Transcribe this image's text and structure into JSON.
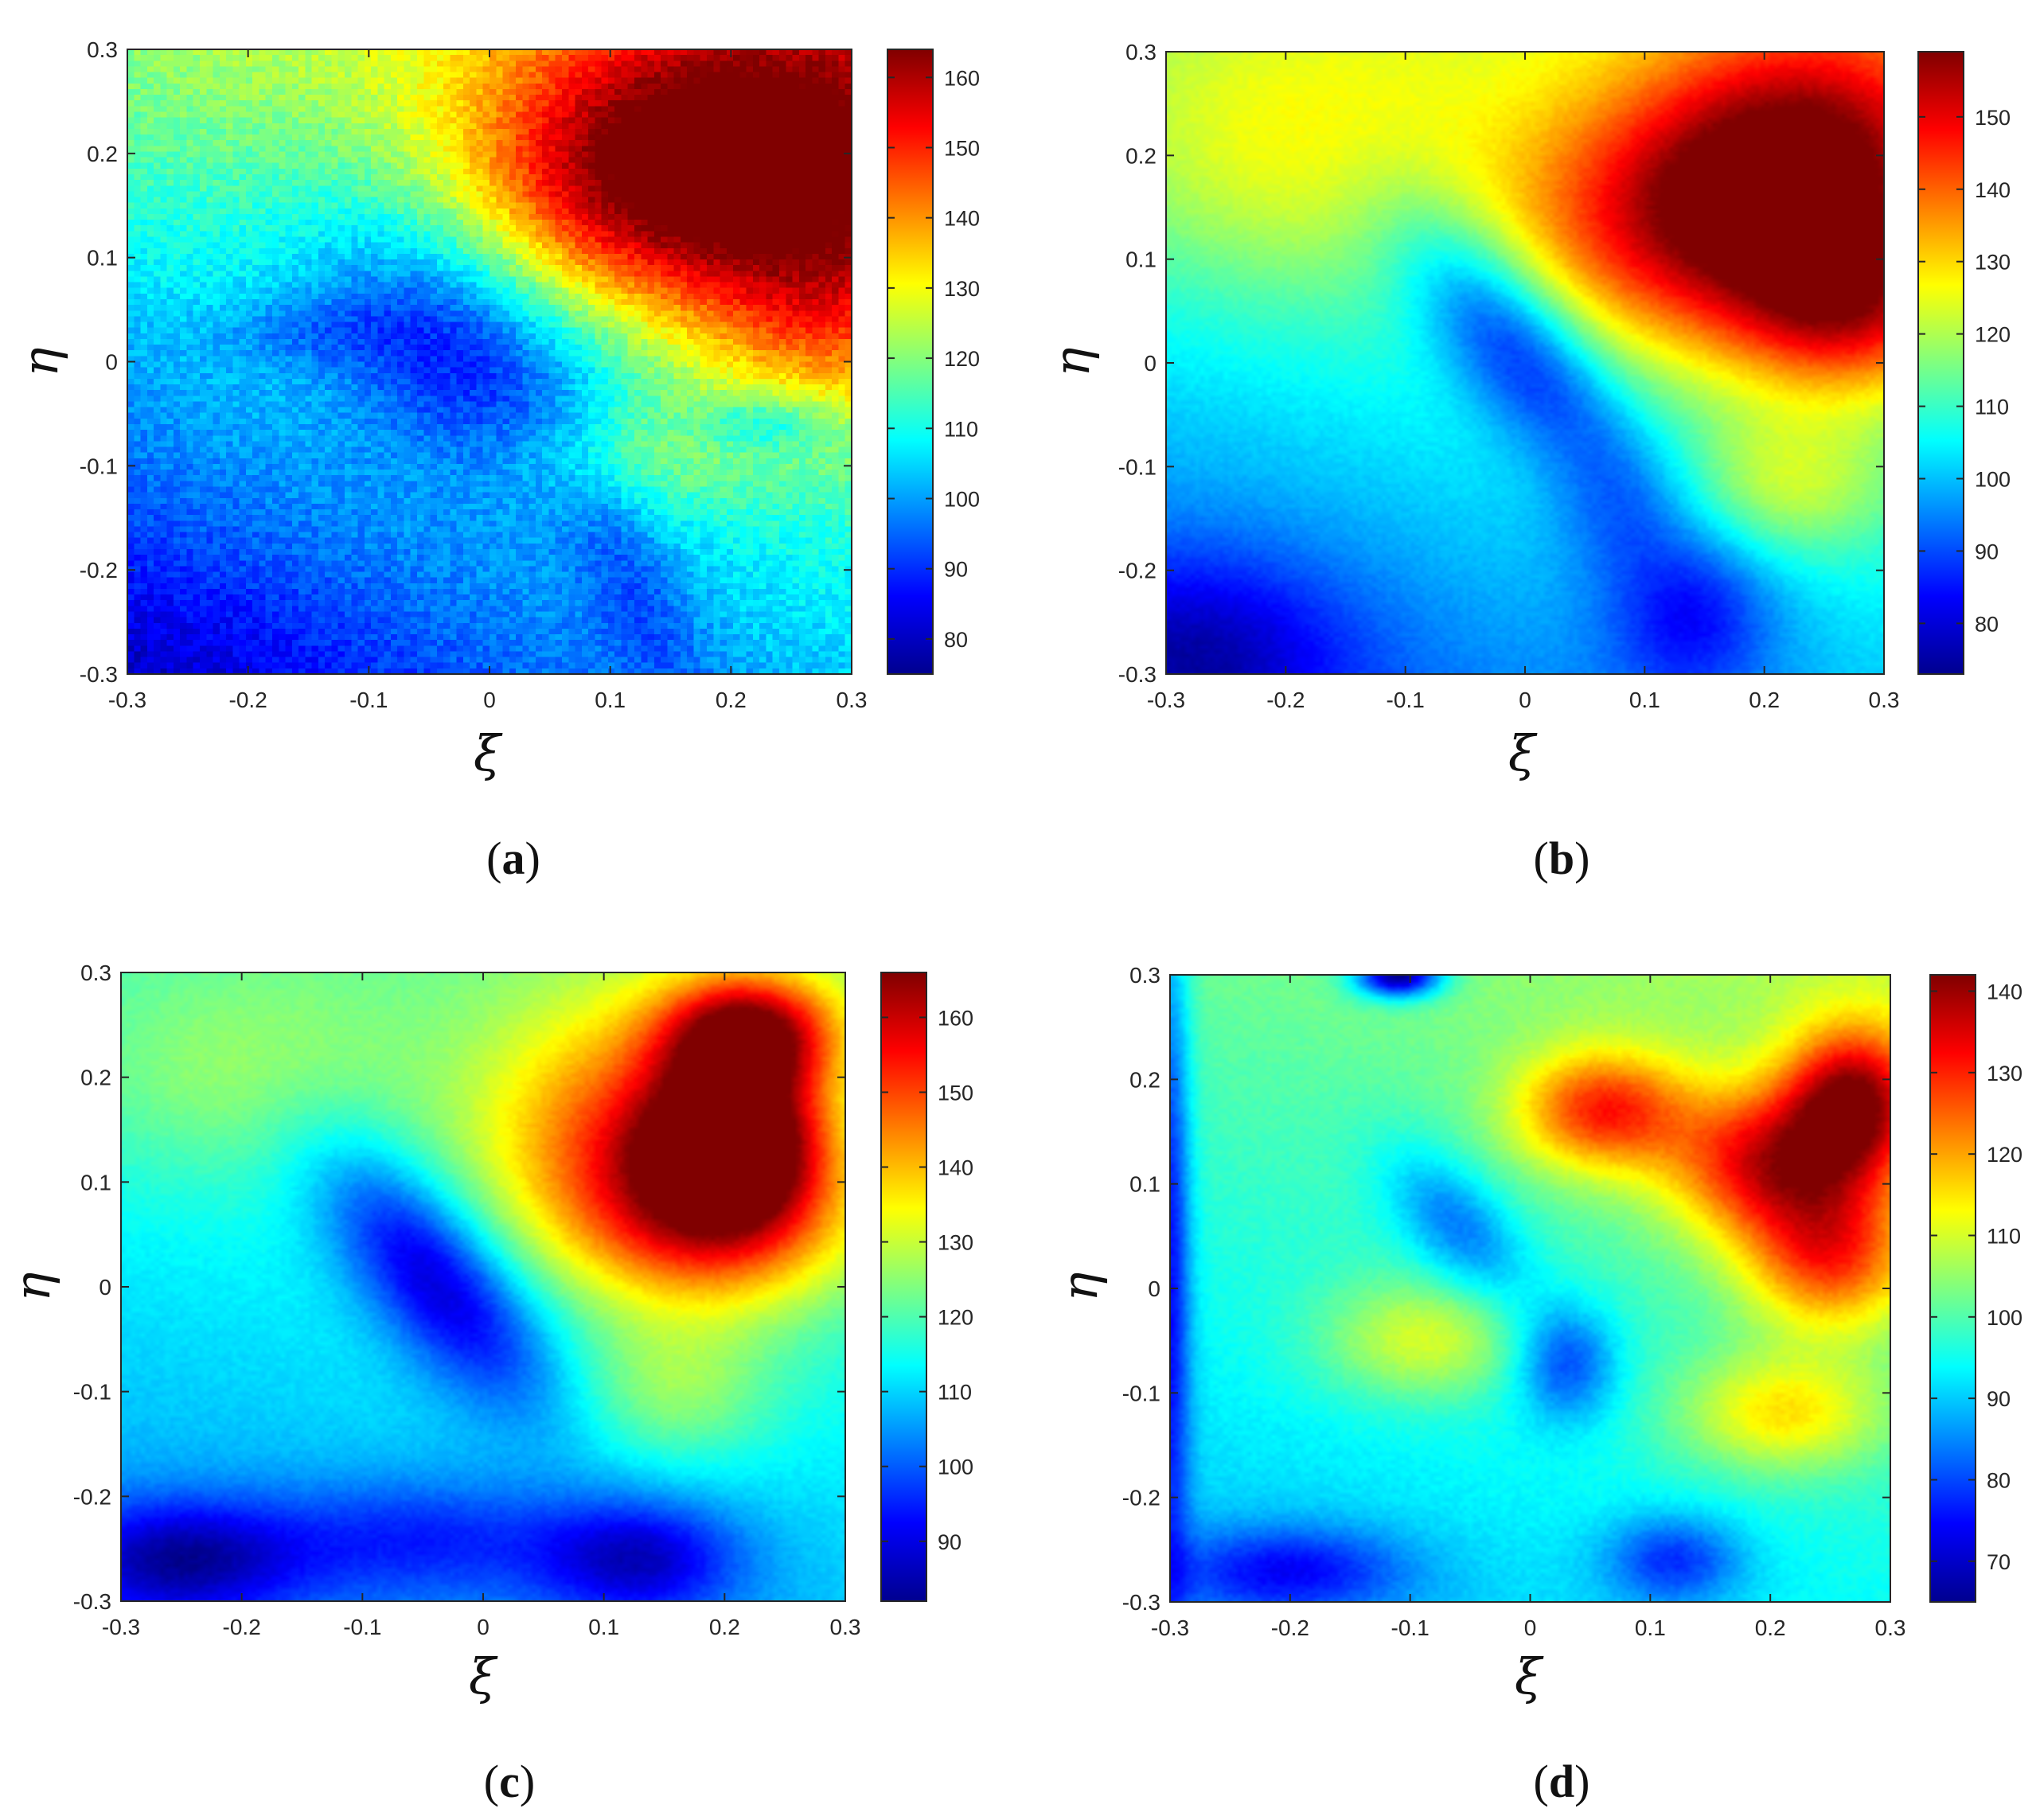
{
  "chart_data": [
    {
      "panel": "(a)",
      "panel_letter": "a",
      "type": "heatmap",
      "xlabel": "ξ",
      "ylabel": "η",
      "xlim": [
        -0.3,
        0.3
      ],
      "ylim": [
        -0.3,
        0.3
      ],
      "xticks": [
        "-0.3",
        "-0.2",
        "-0.1",
        "0",
        "0.1",
        "0.2",
        "0.3"
      ],
      "yticks": [
        "-0.3",
        "-0.2",
        "-0.1",
        "0",
        "0.1",
        "0.2",
        "0.3"
      ],
      "colormap": "jet",
      "clim": [
        75,
        164
      ],
      "colorbar_ticks": [
        "80",
        "90",
        "100",
        "110",
        "120",
        "130",
        "140",
        "150",
        "160"
      ],
      "colorbar_values": [
        80,
        90,
        100,
        110,
        120,
        130,
        140,
        150,
        160
      ],
      "texture": "pixelated",
      "field": {
        "background": {
          "base": 111,
          "slope_x": 32,
          "slope_y": 55
        },
        "features": [
          {
            "x": 0.24,
            "y": 0.2,
            "value": 162,
            "sx": 0.13,
            "sy": 0.1
          },
          {
            "x": 0.12,
            "y": 0.17,
            "value": 150,
            "sx": 0.11,
            "sy": 0.09
          },
          {
            "x": 0.28,
            "y": 0.04,
            "value": 140,
            "sx": 0.07,
            "sy": 0.07
          },
          {
            "x": -0.02,
            "y": 0.02,
            "value": 88,
            "sx": 0.07,
            "sy": 0.11,
            "angle": -40
          },
          {
            "x": 0.12,
            "y": -0.22,
            "value": 94,
            "sx": 0.03,
            "sy": 0.09,
            "angle": -20
          },
          {
            "x": -0.15,
            "y": 0.03,
            "value": 101,
            "sx": 0.06,
            "sy": 0.025
          },
          {
            "x": 0.23,
            "y": -0.06,
            "value": 102,
            "sx": 0.04,
            "sy": 0.02
          },
          {
            "x": 0.12,
            "y": -0.09,
            "value": 121,
            "sx": 0.08,
            "sy": 0.04
          },
          {
            "x": -0.27,
            "y": -0.29,
            "value": 82,
            "sx": 0.12,
            "sy": 0.07
          },
          {
            "x": -0.28,
            "y": 0.25,
            "value": 119,
            "sx": 0.12,
            "sy": 0.1
          }
        ]
      }
    },
    {
      "panel": "(b)",
      "panel_letter": "b",
      "type": "heatmap",
      "xlabel": "ξ",
      "ylabel": "η",
      "xlim": [
        -0.3,
        0.3
      ],
      "ylim": [
        -0.3,
        0.3
      ],
      "xticks": [
        "-0.3",
        "-0.2",
        "-0.1",
        "0",
        "0.1",
        "0.2",
        "0.3"
      ],
      "yticks": [
        "-0.3",
        "-0.2",
        "-0.1",
        "0",
        "0.1",
        "0.2",
        "0.3"
      ],
      "colormap": "jet",
      "clim": [
        73,
        159
      ],
      "colorbar_ticks": [
        "80",
        "90",
        "100",
        "110",
        "120",
        "130",
        "140",
        "150"
      ],
      "colorbar_values": [
        80,
        90,
        100,
        110,
        120,
        130,
        140,
        150
      ],
      "texture": "smooth",
      "field": {
        "background": {
          "base": 108,
          "slope_x": 18,
          "slope_y": 40
        },
        "features": [
          {
            "x": 0.24,
            "y": 0.19,
            "value": 157,
            "sx": 0.09,
            "sy": 0.09
          },
          {
            "x": 0.12,
            "y": 0.13,
            "value": 146,
            "sx": 0.1,
            "sy": 0.09
          },
          {
            "x": 0.27,
            "y": 0.05,
            "value": 144,
            "sx": 0.07,
            "sy": 0.06
          },
          {
            "x": -0.01,
            "y": 0.02,
            "value": 84,
            "sx": 0.04,
            "sy": 0.1,
            "angle": -35
          },
          {
            "x": 0.14,
            "y": -0.24,
            "value": 84,
            "sx": 0.05,
            "sy": 0.06
          },
          {
            "x": 0.08,
            "y": -0.14,
            "value": 96,
            "sx": 0.04,
            "sy": 0.05
          },
          {
            "x": -0.27,
            "y": -0.28,
            "value": 76,
            "sx": 0.09,
            "sy": 0.07
          },
          {
            "x": -0.2,
            "y": 0.2,
            "value": 126,
            "sx": 0.13,
            "sy": 0.1
          },
          {
            "x": 0.22,
            "y": -0.12,
            "value": 122,
            "sx": 0.06,
            "sy": 0.05
          }
        ]
      }
    },
    {
      "panel": "(c)",
      "panel_letter": "c",
      "type": "heatmap",
      "xlabel": "ξ",
      "ylabel": "η",
      "xlim": [
        -0.3,
        0.3
      ],
      "ylim": [
        -0.3,
        0.3
      ],
      "xticks": [
        "-0.3",
        "-0.2",
        "-0.1",
        "0",
        "0.1",
        "0.2",
        "0.3"
      ],
      "yticks": [
        "-0.3",
        "-0.2",
        "-0.1",
        "0",
        "0.1",
        "0.2",
        "0.3"
      ],
      "colormap": "jet",
      "clim": [
        82,
        166
      ],
      "colorbar_ticks": [
        "90",
        "100",
        "110",
        "120",
        "130",
        "140",
        "150",
        "160"
      ],
      "colorbar_values": [
        90,
        100,
        110,
        120,
        130,
        140,
        150,
        160
      ],
      "texture": "smooth",
      "field": {
        "background": {
          "base": 114,
          "slope_x": 8,
          "slope_y": 25
        },
        "features": [
          {
            "x": 0.22,
            "y": 0.24,
            "value": 166,
            "sx": 0.05,
            "sy": 0.04
          },
          {
            "x": 0.21,
            "y": 0.14,
            "value": 164,
            "sx": 0.05,
            "sy": 0.05
          },
          {
            "x": 0.12,
            "y": 0.14,
            "value": 148,
            "sx": 0.09,
            "sy": 0.09
          },
          {
            "x": 0.2,
            "y": 0.06,
            "value": 146,
            "sx": 0.08,
            "sy": 0.06
          },
          {
            "x": -0.04,
            "y": 0.01,
            "value": 88,
            "sx": 0.04,
            "sy": 0.1,
            "angle": -35
          },
          {
            "x": -0.25,
            "y": -0.26,
            "value": 84,
            "sx": 0.07,
            "sy": 0.04
          },
          {
            "x": 0.13,
            "y": -0.26,
            "value": 88,
            "sx": 0.06,
            "sy": 0.04
          },
          {
            "x": -0.05,
            "y": -0.24,
            "value": 95,
            "sx": 0.09,
            "sy": 0.04
          },
          {
            "x": 0.16,
            "y": -0.1,
            "value": 125,
            "sx": 0.06,
            "sy": 0.05
          },
          {
            "x": -0.2,
            "y": 0.2,
            "value": 126,
            "sx": 0.1,
            "sy": 0.07
          }
        ]
      }
    },
    {
      "panel": "(d)",
      "panel_letter": "d",
      "type": "heatmap",
      "xlabel": "ξ",
      "ylabel": "η",
      "xlim": [
        -0.3,
        0.3
      ],
      "ylim": [
        -0.3,
        0.3
      ],
      "xticks": [
        "-0.3",
        "-0.2",
        "-0.1",
        "0",
        "0.1",
        "0.2",
        "0.3"
      ],
      "yticks": [
        "-0.3",
        "-0.2",
        "-0.1",
        "0",
        "0.1",
        "0.2",
        "0.3"
      ],
      "colormap": "jet",
      "clim": [
        65,
        142
      ],
      "colorbar_ticks": [
        "70",
        "80",
        "90",
        "100",
        "110",
        "120",
        "130",
        "140"
      ],
      "colorbar_values": [
        70,
        80,
        90,
        100,
        110,
        120,
        130,
        140
      ],
      "texture": "smooth",
      "field": {
        "background": {
          "base": 98,
          "slope_x": 10,
          "slope_y": 22
        },
        "features": [
          {
            "x": 0.27,
            "y": 0.18,
            "value": 140,
            "sx": 0.04,
            "sy": 0.05
          },
          {
            "x": 0.2,
            "y": 0.12,
            "value": 134,
            "sx": 0.06,
            "sy": 0.05
          },
          {
            "x": 0.06,
            "y": 0.17,
            "value": 130,
            "sx": 0.05,
            "sy": 0.04
          },
          {
            "x": 0.25,
            "y": 0.03,
            "value": 128,
            "sx": 0.05,
            "sy": 0.05
          },
          {
            "x": 0.21,
            "y": -0.12,
            "value": 115,
            "sx": 0.06,
            "sy": 0.04
          },
          {
            "x": -0.06,
            "y": 0.06,
            "value": 84,
            "sx": 0.03,
            "sy": 0.06,
            "angle": -35
          },
          {
            "x": 0.03,
            "y": -0.07,
            "value": 80,
            "sx": 0.03,
            "sy": 0.04
          },
          {
            "x": -0.2,
            "y": -0.27,
            "value": 74,
            "sx": 0.07,
            "sy": 0.03
          },
          {
            "x": 0.12,
            "y": -0.26,
            "value": 78,
            "sx": 0.04,
            "sy": 0.03
          },
          {
            "x": -0.11,
            "y": 0.3,
            "value": 66,
            "sx": 0.025,
            "sy": 0.015
          },
          {
            "x": -0.3,
            "y": 0.05,
            "value": 76,
            "sx": 0.012,
            "sy": 0.25
          },
          {
            "x": -0.09,
            "y": -0.05,
            "value": 110,
            "sx": 0.06,
            "sy": 0.04
          }
        ]
      }
    }
  ]
}
